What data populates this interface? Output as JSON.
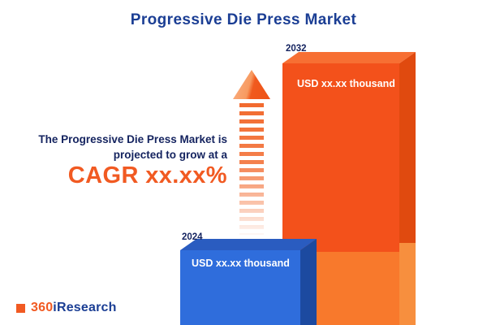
{
  "title": "Progressive Die Press Market",
  "annotation": {
    "line1": "The Progressive Die Press Market is",
    "line2": "projected to grow at a",
    "cagr": "CAGR xx.xx%"
  },
  "bars": [
    {
      "year": "2024",
      "value_label": "USD xx.xx thousand"
    },
    {
      "year": "2032",
      "value_label": "USD xx.xx thousand"
    }
  ],
  "logo": {
    "part1": "360",
    "part2": "iResearch"
  },
  "colors": {
    "navy": "#1b3e94",
    "text_navy": "#14235f",
    "orange": "#f15a22",
    "blue_bar": "#2f6ddc",
    "orange_bar": "#f3511b"
  },
  "chart_data": {
    "type": "bar",
    "categories": [
      "2024",
      "2032"
    ],
    "values": [
      null,
      null
    ],
    "value_labels": [
      "USD xx.xx thousand",
      "USD xx.xx thousand"
    ],
    "relative_heights": [
      0.29,
      1.0
    ],
    "title": "Progressive Die Press Market",
    "xlabel": "",
    "ylabel": "",
    "annotation": "The Progressive Die Press Market is projected to grow at a CAGR xx.xx%",
    "legend": false,
    "grid": false,
    "notes": "Promotional 3D bar infographic; numeric values masked as xx.xx in source image"
  }
}
